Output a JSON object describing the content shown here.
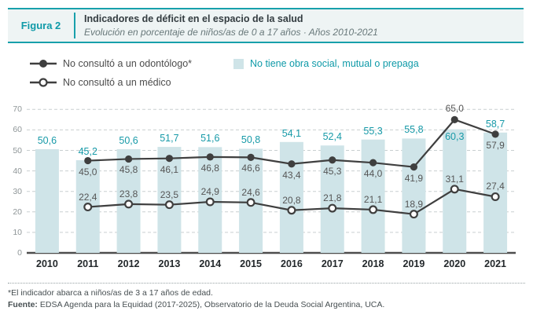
{
  "figure": {
    "label": "Figura 2",
    "title": "Indicadores de déficit en el espacio de la salud",
    "subtitle": "Evolución en porcentaje de niños/as de 0 a 17 años · Años 2010-2021"
  },
  "legend": {
    "odontologo": "No consultó a un odontólogo*",
    "medico": "No consultó a un médico",
    "obra_social": "No tiene obra social, mutual o prepaga"
  },
  "colors": {
    "teal": "#0f9aa8",
    "teal_border": "#18a0ab",
    "bar_fill": "#cfe4e8",
    "line": "#3f3f3f",
    "grid": "#c9cfd0",
    "axis": "#4d4d4d",
    "band_bg": "#eef4f4"
  },
  "chart_data": {
    "type": "bar+line",
    "categories": [
      "2010",
      "2011",
      "2012",
      "2013",
      "2014",
      "2015",
      "2016",
      "2017",
      "2018",
      "2019",
      "2020",
      "2021"
    ],
    "bar_series": {
      "name": "No tiene obra social, mutual o prepaga",
      "values": [
        50.6,
        45.2,
        50.6,
        51.7,
        51.6,
        50.8,
        54.1,
        52.4,
        55.3,
        55.8,
        60.3,
        58.7
      ]
    },
    "line_series": [
      {
        "name": "No consultó a un odontólogo*",
        "marker": "filled",
        "values": [
          null,
          45.0,
          45.8,
          46.1,
          46.8,
          46.6,
          43.4,
          45.3,
          44.0,
          41.9,
          65.0,
          57.9
        ]
      },
      {
        "name": "No consultó a un médico",
        "marker": "open",
        "values": [
          null,
          22.4,
          23.8,
          23.5,
          24.9,
          24.6,
          20.8,
          21.8,
          21.1,
          18.9,
          31.1,
          27.4
        ]
      }
    ],
    "ylim": [
      0,
      70
    ],
    "yticks": [
      0,
      10,
      20,
      30,
      40,
      50,
      60,
      70
    ],
    "grid": "dashed-horizontal",
    "decimal_separator": ",",
    "legend_position": "top-left"
  },
  "footnotes": {
    "note": "*El indicador abarca a niños/as de 3 a 17 años de edad.",
    "source_label": "Fuente:",
    "source_text": "EDSA Agenda para la Equidad (2017-2025), Observatorio de la Deuda Social Argentina, UCA."
  }
}
